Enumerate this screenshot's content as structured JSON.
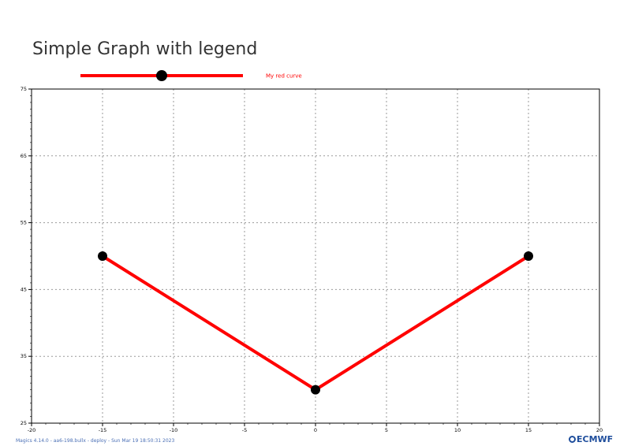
{
  "chart_data": {
    "type": "line",
    "title": "Simple Graph with legend",
    "xlabel": "",
    "ylabel": "",
    "xlim": [
      -20,
      20
    ],
    "ylim": [
      25,
      75
    ],
    "x_ticks": [
      -20,
      -15,
      -10,
      -5,
      0,
      5,
      10,
      15,
      20
    ],
    "y_ticks": [
      25,
      35,
      45,
      55,
      65,
      75
    ],
    "grid": true,
    "legend_position": "top",
    "series": [
      {
        "name": "My red curve",
        "x": [
          -15,
          0,
          15
        ],
        "y": [
          50,
          30,
          50
        ],
        "color": "#ff0000",
        "marker_color": "#000000"
      }
    ]
  },
  "footer": {
    "text": "Magics 4.14.0 - aa6-198.bullx - deploy - Sun Mar 19 18:50:31 2023",
    "color": "#4a6fb5"
  },
  "logo": {
    "text": "ECMWF",
    "color": "#1f4e9c"
  }
}
